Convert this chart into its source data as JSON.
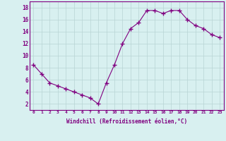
{
  "x": [
    0,
    1,
    2,
    3,
    4,
    5,
    6,
    7,
    8,
    9,
    10,
    11,
    12,
    13,
    14,
    15,
    16,
    17,
    18,
    19,
    20,
    21,
    22,
    23
  ],
  "y": [
    8.5,
    7.0,
    5.5,
    5.0,
    4.5,
    4.0,
    3.5,
    3.0,
    2.0,
    5.5,
    8.5,
    12.0,
    14.5,
    15.5,
    17.5,
    17.5,
    17.0,
    17.5,
    17.5,
    16.0,
    15.0,
    14.5,
    13.5,
    13.0
  ],
  "line_color": "#800080",
  "marker": "+",
  "marker_size": 4,
  "bg_color": "#d8f0f0",
  "grid_color": "#b8d4d4",
  "xlabel": "Windchill (Refroidissement éolien,°C)",
  "ylabel_ticks": [
    2,
    4,
    6,
    8,
    10,
    12,
    14,
    16,
    18
  ],
  "xlim": [
    -0.5,
    23.5
  ],
  "ylim": [
    1.0,
    19.0
  ],
  "xlabel_color": "#800080",
  "tick_color": "#800080"
}
